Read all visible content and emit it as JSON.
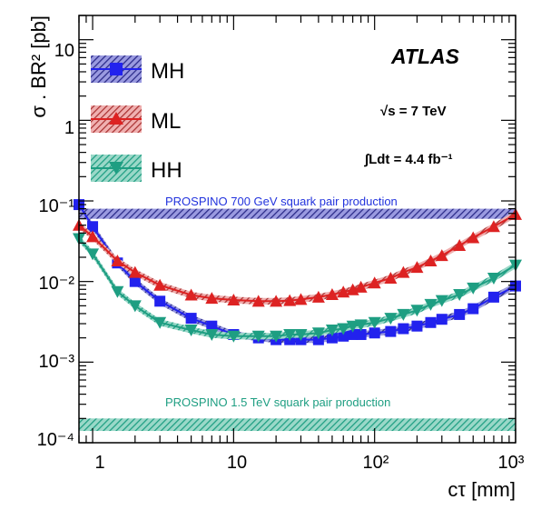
{
  "chart_data": {
    "type": "line",
    "xscale": "log",
    "yscale": "log",
    "xlim": [
      0.8,
      1000
    ],
    "ylim": [
      0.0001,
      20
    ],
    "xlabel": "cτ [mm]",
    "ylabel": "σ . BR² [pb]",
    "x_tick_labels": [
      "1",
      "10",
      "10²",
      "10³"
    ],
    "y_tick_labels": [
      "10⁻⁴",
      "10⁻³",
      "10⁻²",
      "10⁻¹",
      "1",
      "10"
    ],
    "legend_position": "top-left",
    "grid": false,
    "experiment_label": "ATLAS",
    "energy_label": "√s = 7 TeV",
    "lumi_label": "∫Ldt = 4.4 fb⁻¹",
    "series": [
      {
        "name": "MH",
        "color": "#2222ee",
        "marker": "square",
        "x": [
          0.8,
          1.0,
          1.5,
          2.0,
          3.0,
          5.0,
          7.0,
          10,
          15,
          20,
          25,
          30,
          40,
          50,
          60,
          70,
          80,
          100,
          130,
          160,
          200,
          250,
          300,
          400,
          500,
          700,
          1000
        ],
        "y": [
          0.09,
          0.048,
          0.017,
          0.01,
          0.0057,
          0.0035,
          0.0028,
          0.0022,
          0.002,
          0.0019,
          0.0019,
          0.0019,
          0.0019,
          0.002,
          0.0021,
          0.0022,
          0.0022,
          0.0023,
          0.0024,
          0.0026,
          0.0028,
          0.0031,
          0.0034,
          0.0039,
          0.0046,
          0.0064,
          0.0088
        ]
      },
      {
        "name": "ML",
        "color": "#dd2222",
        "marker": "triangle-up",
        "x": [
          0.8,
          1.0,
          1.5,
          2.0,
          3.0,
          5.0,
          7.0,
          10,
          15,
          20,
          25,
          30,
          40,
          50,
          60,
          70,
          80,
          100,
          130,
          160,
          200,
          250,
          300,
          400,
          500,
          700,
          1000
        ],
        "y": [
          0.05,
          0.036,
          0.018,
          0.013,
          0.009,
          0.0068,
          0.0062,
          0.0059,
          0.0057,
          0.0057,
          0.0058,
          0.006,
          0.0064,
          0.0069,
          0.0074,
          0.0079,
          0.0085,
          0.0096,
          0.011,
          0.013,
          0.015,
          0.018,
          0.021,
          0.028,
          0.035,
          0.048,
          0.068
        ]
      },
      {
        "name": "HH",
        "color": "#1e9e82",
        "marker": "triangle-down",
        "x": [
          0.8,
          1.0,
          1.5,
          2.0,
          3.0,
          5.0,
          7.0,
          10,
          15,
          20,
          25,
          30,
          40,
          50,
          60,
          70,
          80,
          100,
          130,
          160,
          200,
          250,
          300,
          400,
          500,
          700,
          1000
        ],
        "y": [
          0.034,
          0.022,
          0.0075,
          0.005,
          0.0031,
          0.0025,
          0.0022,
          0.0021,
          0.0021,
          0.0021,
          0.0022,
          0.0022,
          0.0023,
          0.0025,
          0.0026,
          0.0028,
          0.0029,
          0.0031,
          0.0035,
          0.0039,
          0.0044,
          0.0052,
          0.0058,
          0.0069,
          0.0083,
          0.011,
          0.016
        ]
      }
    ],
    "bands": [
      {
        "label": "PROSPINO 700 GeV squark pair production",
        "y_low": 0.06,
        "y_high": 0.08,
        "color": "#2a2a88",
        "label_color": "#2233dd"
      },
      {
        "label": "PROSPINO 1.5 TeV squark pair production",
        "y_low": 0.00014,
        "y_high": 0.0002,
        "color": "#1e9e82",
        "label_color": "#1e9e82"
      }
    ]
  }
}
